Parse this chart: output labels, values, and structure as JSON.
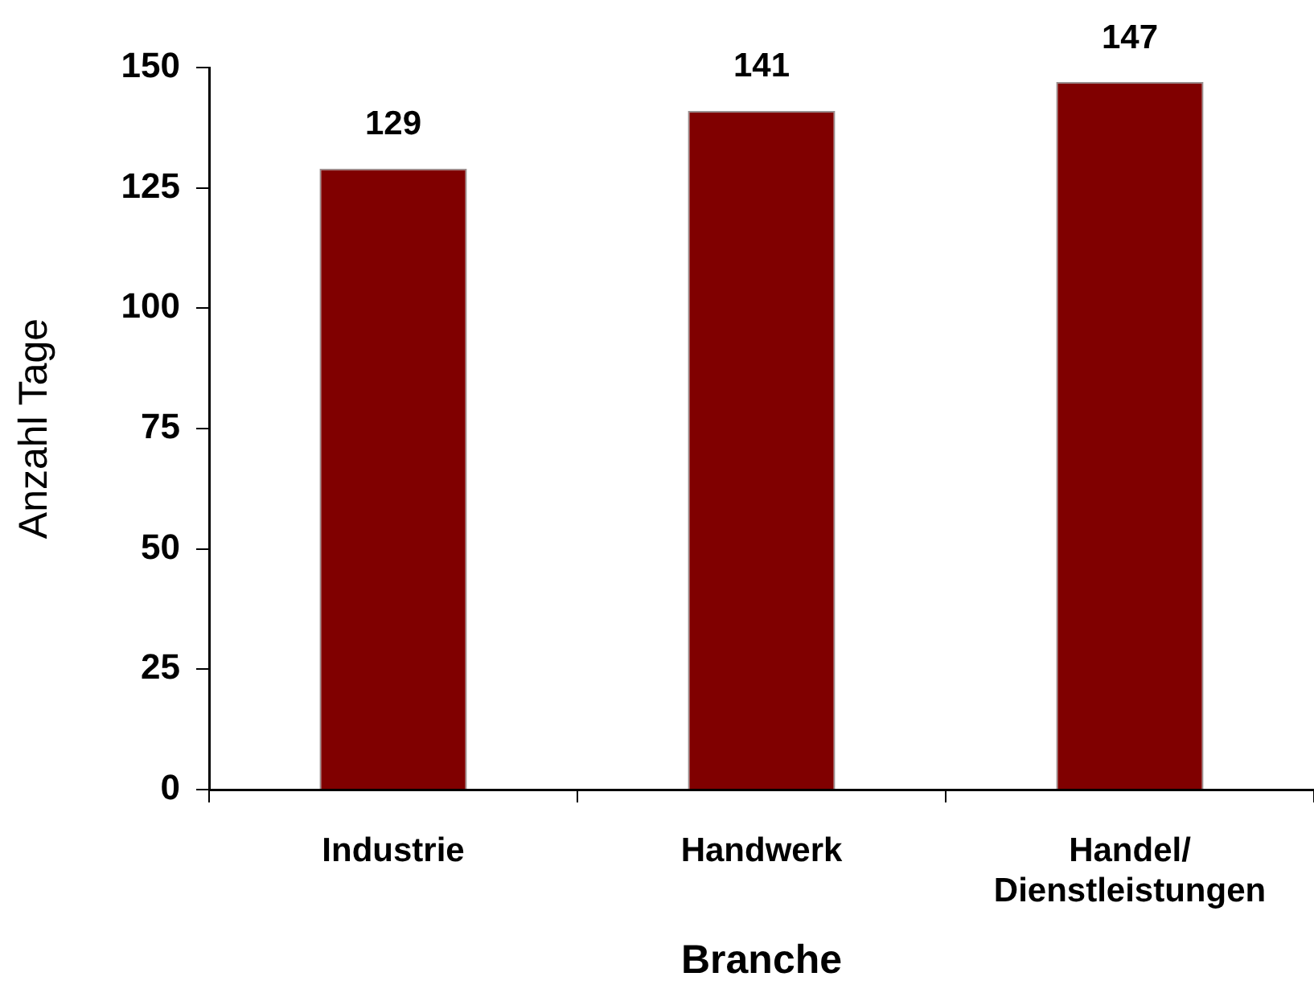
{
  "chart_data": {
    "type": "bar",
    "xlabel": "Branche",
    "ylabel": "Anzahl Tage",
    "categories": [
      "Industrie",
      "Handwerk",
      "Handel/\nDienstleistungen"
    ],
    "values": [
      129,
      141,
      147
    ],
    "color": "#800000",
    "ylim": [
      0,
      150
    ],
    "yticks": [
      0,
      25,
      50,
      75,
      100,
      125,
      150
    ],
    "grid": false,
    "legend": false,
    "data_labels": true
  }
}
